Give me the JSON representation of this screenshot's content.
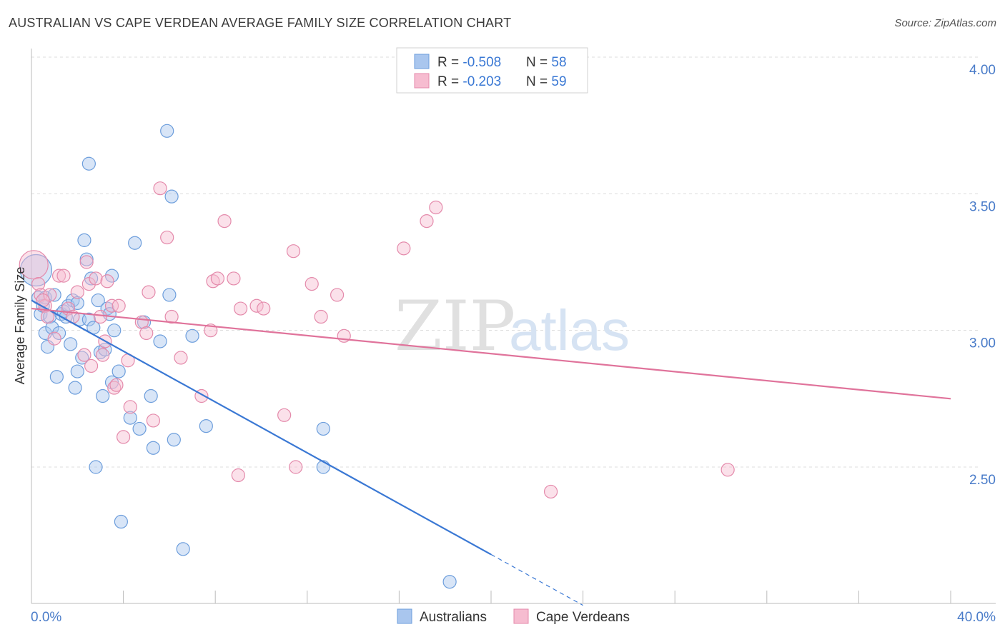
{
  "title": "AUSTRALIAN VS CAPE VERDEAN AVERAGE FAMILY SIZE CORRELATION CHART",
  "source": "Source: ZipAtlas.com",
  "watermark": {
    "zip": "ZIP",
    "atlas": "atlas"
  },
  "chart_data": {
    "type": "scatter",
    "ylabel": "Average Family Size",
    "xlim": [
      0,
      40
    ],
    "ylim": [
      2.0,
      4.1
    ],
    "x_tick_labels": {
      "min": "0.0%",
      "max": "40.0%"
    },
    "y_ticks": [
      {
        "value": 4.0,
        "label": "4.00"
      },
      {
        "value": 3.5,
        "label": "3.50"
      },
      {
        "value": 3.0,
        "label": "3.00"
      },
      {
        "value": 2.5,
        "label": "2.50"
      }
    ],
    "grid": true,
    "legend_position": "top-center",
    "series": [
      {
        "name": "Australians",
        "color": "#a9c6ee",
        "stroke": "#6d9edc",
        "line_color": "#3a78d4",
        "r_label": "R = ",
        "r_value": "-0.508",
        "n_label": "N = ",
        "n_value": "58",
        "trend": {
          "x0": 0,
          "y0": 3.11,
          "x1": 20,
          "y1": 2.18,
          "dash_to_x": 24
        },
        "points": [
          [
            0.2,
            3.22
          ],
          [
            0.3,
            3.12
          ],
          [
            0.4,
            3.06
          ],
          [
            0.5,
            3.09
          ],
          [
            0.6,
            3.12
          ],
          [
            0.6,
            2.99
          ],
          [
            0.7,
            2.94
          ],
          [
            0.8,
            3.05
          ],
          [
            0.9,
            3.01
          ],
          [
            1.0,
            3.13
          ],
          [
            1.1,
            2.83
          ],
          [
            1.2,
            2.99
          ],
          [
            1.3,
            3.06
          ],
          [
            1.4,
            3.07
          ],
          [
            1.5,
            3.05
          ],
          [
            1.6,
            3.09
          ],
          [
            1.7,
            2.95
          ],
          [
            1.8,
            3.11
          ],
          [
            1.9,
            2.79
          ],
          [
            2.0,
            3.1
          ],
          [
            2.0,
            2.85
          ],
          [
            2.1,
            3.04
          ],
          [
            2.2,
            2.9
          ],
          [
            2.3,
            3.33
          ],
          [
            2.4,
            3.26
          ],
          [
            2.5,
            3.04
          ],
          [
            2.5,
            3.61
          ],
          [
            2.6,
            3.19
          ],
          [
            2.7,
            3.01
          ],
          [
            2.8,
            2.5
          ],
          [
            2.9,
            3.11
          ],
          [
            3.0,
            2.92
          ],
          [
            3.1,
            2.76
          ],
          [
            3.2,
            2.93
          ],
          [
            3.3,
            3.08
          ],
          [
            3.4,
            3.06
          ],
          [
            3.5,
            2.81
          ],
          [
            3.5,
            3.2
          ],
          [
            3.6,
            3.0
          ],
          [
            3.8,
            2.85
          ],
          [
            3.9,
            2.3
          ],
          [
            4.3,
            2.68
          ],
          [
            4.5,
            3.32
          ],
          [
            4.7,
            2.64
          ],
          [
            4.9,
            3.03
          ],
          [
            5.2,
            2.76
          ],
          [
            5.3,
            2.57
          ],
          [
            5.6,
            2.96
          ],
          [
            5.9,
            3.73
          ],
          [
            6.0,
            3.13
          ],
          [
            6.1,
            3.49
          ],
          [
            6.2,
            2.6
          ],
          [
            6.6,
            2.2
          ],
          [
            7.0,
            2.98
          ],
          [
            7.6,
            2.65
          ],
          [
            12.7,
            2.5
          ],
          [
            12.7,
            2.64
          ],
          [
            18.2,
            2.08
          ]
        ]
      },
      {
        "name": "Cape Verdeans",
        "color": "#f6bcd0",
        "stroke": "#e48aab",
        "line_color": "#e0739b",
        "r_label": "R = ",
        "r_value": "-0.203",
        "n_label": "N = ",
        "n_value": "59",
        "trend": {
          "x0": 0,
          "y0": 3.08,
          "x1": 40,
          "y1": 2.75
        },
        "points": [
          [
            0.1,
            3.24
          ],
          [
            0.3,
            3.17
          ],
          [
            0.4,
            3.13
          ],
          [
            0.6,
            3.09
          ],
          [
            0.7,
            3.05
          ],
          [
            0.8,
            3.13
          ],
          [
            1.0,
            2.97
          ],
          [
            1.2,
            3.2
          ],
          [
            1.4,
            3.2
          ],
          [
            1.6,
            3.08
          ],
          [
            1.8,
            3.05
          ],
          [
            2.0,
            3.14
          ],
          [
            2.3,
            2.91
          ],
          [
            2.4,
            3.25
          ],
          [
            2.5,
            3.17
          ],
          [
            2.6,
            2.87
          ],
          [
            2.8,
            3.19
          ],
          [
            3.0,
            3.05
          ],
          [
            3.1,
            2.91
          ],
          [
            3.2,
            2.96
          ],
          [
            3.3,
            3.18
          ],
          [
            3.5,
            3.09
          ],
          [
            3.6,
            2.79
          ],
          [
            3.7,
            2.8
          ],
          [
            3.8,
            3.09
          ],
          [
            4.0,
            2.61
          ],
          [
            4.2,
            2.89
          ],
          [
            4.3,
            2.72
          ],
          [
            4.8,
            3.03
          ],
          [
            5.0,
            2.99
          ],
          [
            5.1,
            3.14
          ],
          [
            5.3,
            2.67
          ],
          [
            5.6,
            3.52
          ],
          [
            5.9,
            3.34
          ],
          [
            6.1,
            3.05
          ],
          [
            6.5,
            2.9
          ],
          [
            7.4,
            2.76
          ],
          [
            7.8,
            3.0
          ],
          [
            7.9,
            3.18
          ],
          [
            8.1,
            3.19
          ],
          [
            8.4,
            3.4
          ],
          [
            8.8,
            3.19
          ],
          [
            9.0,
            2.47
          ],
          [
            9.1,
            3.08
          ],
          [
            9.8,
            3.09
          ],
          [
            10.1,
            3.08
          ],
          [
            11.0,
            2.69
          ],
          [
            11.4,
            3.29
          ],
          [
            11.5,
            2.5
          ],
          [
            12.2,
            3.17
          ],
          [
            12.6,
            3.05
          ],
          [
            13.3,
            3.13
          ],
          [
            13.6,
            2.98
          ],
          [
            16.2,
            3.3
          ],
          [
            17.2,
            3.4
          ],
          [
            17.6,
            3.45
          ],
          [
            22.6,
            2.41
          ],
          [
            30.3,
            2.49
          ],
          [
            0.5,
            3.11
          ]
        ]
      }
    ]
  }
}
